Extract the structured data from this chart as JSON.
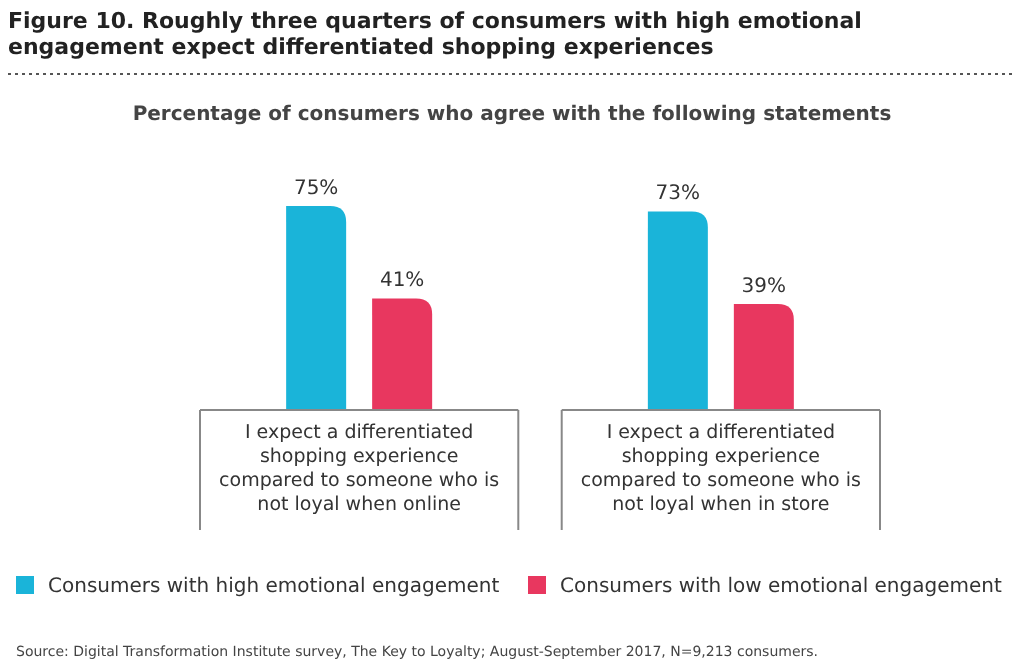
{
  "chart_data": {
    "type": "bar",
    "title": "Figure 10. Roughly three quarters of consumers with high emotional engagement expect differentiated shopping experiences",
    "subtitle": "Percentage of consumers who agree with the following statements",
    "categories": [
      "I expect a differentiated shopping experience compared to someone who is not loyal when online",
      "I expect a differentiated shopping experience compared to someone who is not loyal when in store"
    ],
    "series": [
      {
        "name": "Consumers with high emotional engagement",
        "color": "#1ab4d9",
        "values": [
          75,
          73
        ],
        "value_labels": [
          "75%",
          "73%"
        ]
      },
      {
        "name": "Consumers with low emotional engagement",
        "color": "#e8375f",
        "values": [
          41,
          39
        ],
        "value_labels": [
          "41%",
          "39%"
        ]
      }
    ],
    "legend": "bottom",
    "annotations": [
      "Source: Digital Transformation Institute survey, The Key to Loyalty; August-September 2017, N=9,213 consumers."
    ]
  }
}
